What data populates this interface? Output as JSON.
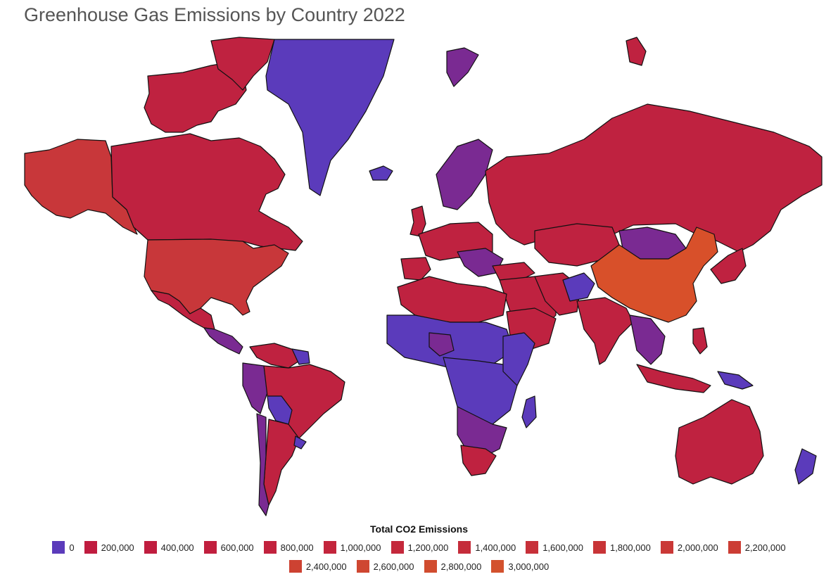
{
  "title": "Greenhouse Gas Emissions by Country 2022",
  "legend": {
    "title": "Total CO2 Emissions",
    "items": [
      {
        "label": "0",
        "color": "#5b3bbb"
      },
      {
        "label": "200,000",
        "color": "#c01c3f"
      },
      {
        "label": "400,000",
        "color": "#c01d3f"
      },
      {
        "label": "600,000",
        "color": "#c11f3e"
      },
      {
        "label": "800,000",
        "color": "#c2223d"
      },
      {
        "label": "1,000,000",
        "color": "#c3253c"
      },
      {
        "label": "1,200,000",
        "color": "#c4283b"
      },
      {
        "label": "1,400,000",
        "color": "#c52c3a"
      },
      {
        "label": "1,600,000",
        "color": "#c73039"
      },
      {
        "label": "1,800,000",
        "color": "#c83437"
      },
      {
        "label": "2,000,000",
        "color": "#ca3836"
      },
      {
        "label": "2,200,000",
        "color": "#cc3d34"
      },
      {
        "label": "2,400,000",
        "color": "#cd4232"
      },
      {
        "label": "2,600,000",
        "color": "#cf4731"
      },
      {
        "label": "2,800,000",
        "color": "#d14c2f"
      },
      {
        "label": "3,000,000",
        "color": "#d3512d"
      }
    ]
  },
  "colors": {
    "low": "#5b3bbb",
    "mid": "#7a2a92",
    "high": "#bf2240",
    "upper": "#c8373a",
    "top": "#d8502a"
  }
}
